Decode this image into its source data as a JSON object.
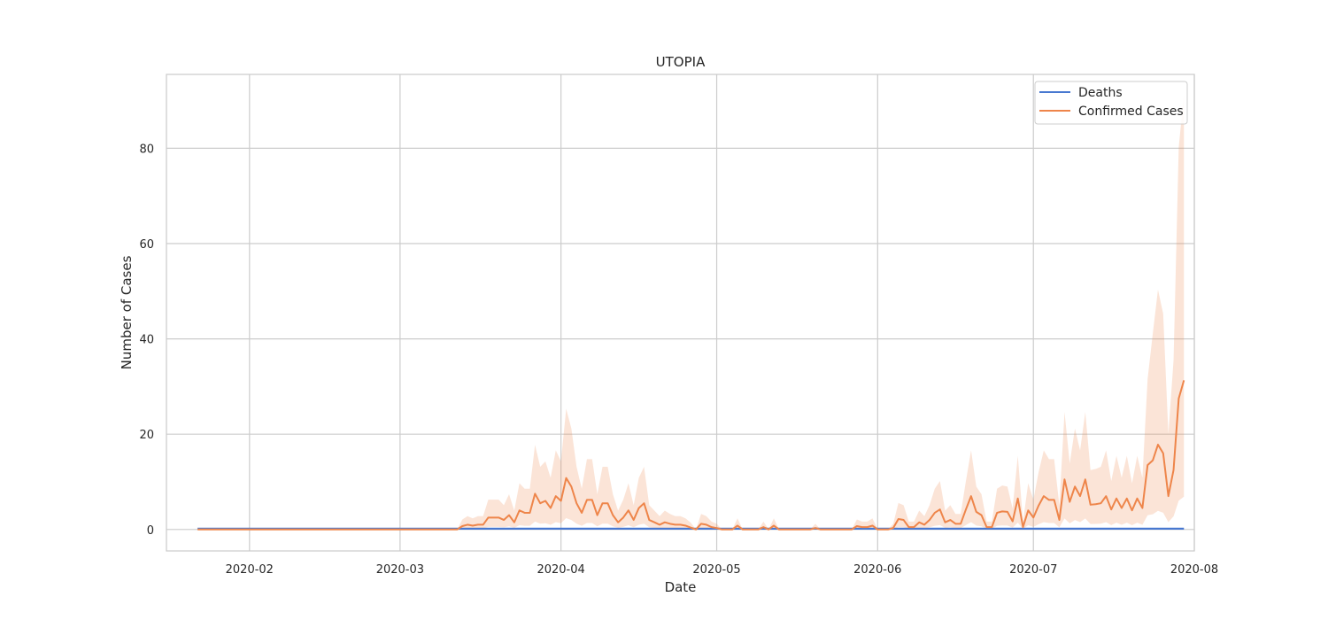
{
  "chart_data": {
    "type": "line",
    "title": "UTOPIA",
    "xlabel": "Date",
    "ylabel": "Number of Cases",
    "x_ticks": [
      "2020-02",
      "2020-03",
      "2020-04",
      "2020-05",
      "2020-06",
      "2020-07",
      "2020-08"
    ],
    "y_ticks": [
      0,
      20,
      40,
      60,
      80
    ],
    "xlim": [
      "2020-01-16",
      "2020-08-01"
    ],
    "ylim": [
      -4.5,
      95.5
    ],
    "grid": true,
    "legend_position": "top-right",
    "start_date": "2020-01-22",
    "end_date": "2020-07-30",
    "colors": {
      "deaths": "#4878d0",
      "confirmed": "#ee854a"
    },
    "series": [
      {
        "name": "Deaths",
        "key": "deaths",
        "values": [],
        "band_lower": [],
        "band_upper": []
      },
      {
        "name": "Confirmed Cases",
        "key": "confirmed",
        "values": [],
        "band_lower": [],
        "band_upper": []
      }
    ]
  }
}
